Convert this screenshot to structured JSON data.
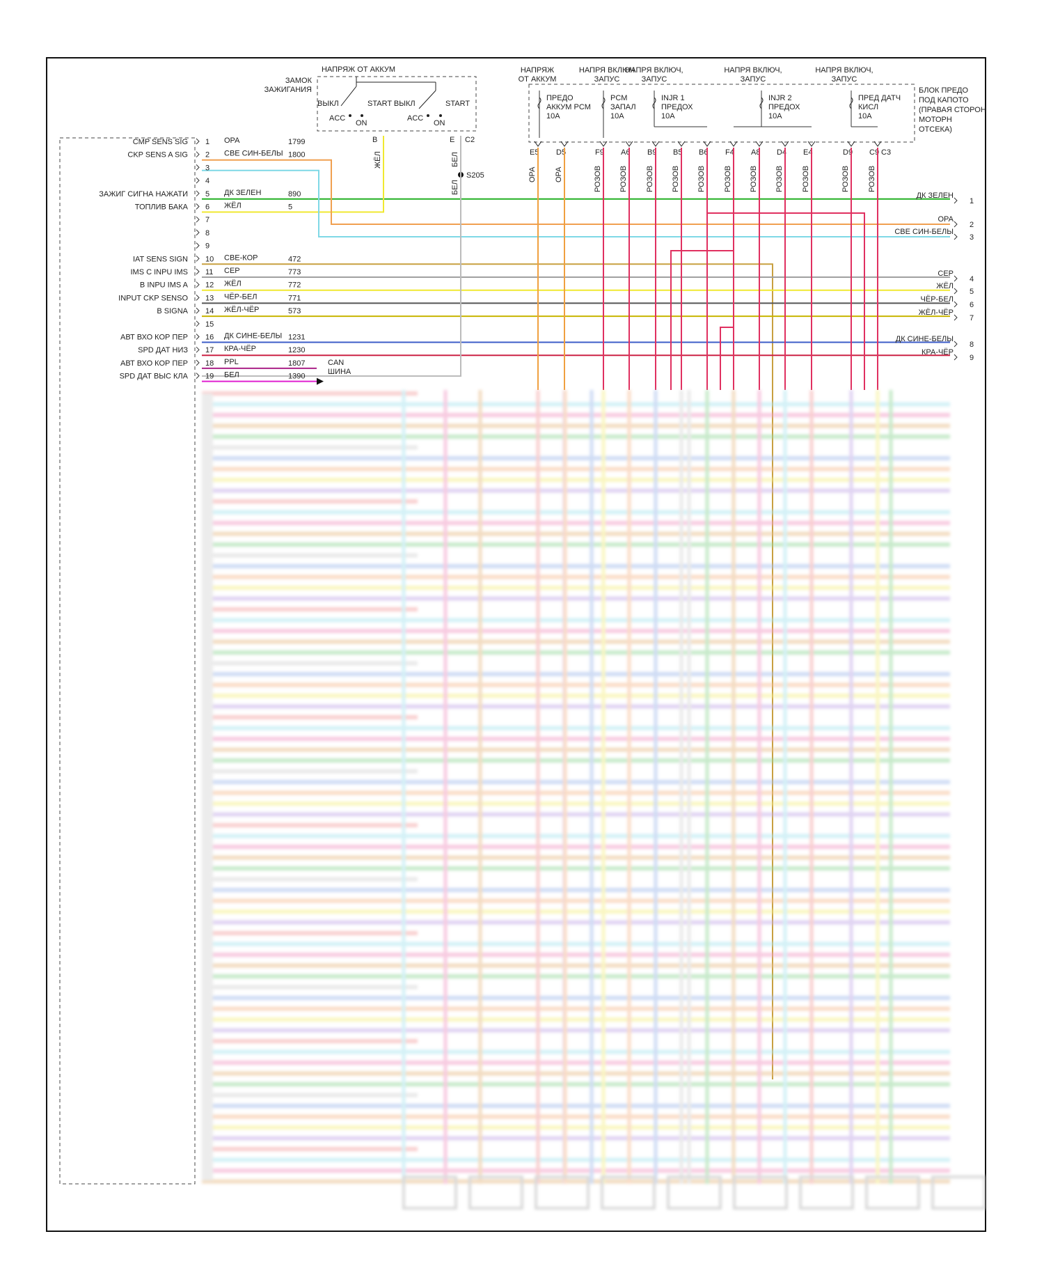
{
  "colors": {
    "orange": "#f0a050",
    "lightblue": "#7fd8e6",
    "green": "#22b022",
    "yellow": "#f0e830",
    "brown": "#c8a040",
    "gray": "#a0a0a0",
    "blackwhite": "#555555",
    "blue": "#3c5cc8",
    "red": "#cc2244",
    "purple": "#aa2288",
    "magenta": "#e020d0",
    "pink": "#e03060",
    "frame": "#111111"
  },
  "ignition": {
    "battery_label": "НАПРЯЖ ОТ АККУМ",
    "switch_label_1": "ЗАМОК",
    "switch_label_2": "ЗАЖИГАНИЯ",
    "off": "ВЫКЛ",
    "start_off": "START ВЫКЛ",
    "start": "START",
    "acc1": "ACC",
    "on1": "ON",
    "acc2": "ACC",
    "on2": "ON",
    "pin_b": "B",
    "pin_e": "E",
    "conn_c2": "C2",
    "wire_b": "ЖЁЛ",
    "wire_e": "БЕЛ",
    "wire_e2": "БЕЛ",
    "splice": "S205",
    "can_1": "CAN",
    "can_2": "ШИНА"
  },
  "fuse_box": {
    "label_lines": [
      "БЛОК ПРЕДО",
      "ПОД КАПОТО",
      "(ПРАВАЯ СТОРОН",
      "МОТОРН",
      "ОТСЕКА)"
    ],
    "supply_headers": [
      {
        "l1": "НАПРЯЖ",
        "l2": "ОТ АККУМ"
      },
      {
        "l1": "НАПРЯ ВКЛЮЧ",
        "l2": "ЗАПУС"
      },
      {
        "l1": "НАПРЯ ВКЛЮЧ,",
        "l2": "ЗАПУС"
      },
      {
        "l1": "НАПРЯ ВКЛЮЧ,",
        "l2": "ЗАПУС"
      },
      {
        "l1": "НАПРЯ ВКЛЮЧ,",
        "l2": "ЗАПУС"
      }
    ],
    "fuses": [
      {
        "l1": "ПРЕДО",
        "l2": "АККУМ PCM",
        "l3": "10A"
      },
      {
        "l1": "PCM",
        "l2": "ЗАПАЛ",
        "l3": "10A"
      },
      {
        "l1": "INJR 1",
        "l2": "ПРЕДОХ",
        "l3": "10A"
      },
      {
        "l1": "INJR 2",
        "l2": "ПРЕДОХ",
        "l3": "10A"
      },
      {
        "l1": "ПРЕД ДАТЧ",
        "l2": "КИСЛ",
        "l3": "10A"
      }
    ],
    "pins": [
      "E5",
      "D5",
      "F9",
      "A6",
      "B9",
      "B5",
      "B6",
      "F4",
      "A8",
      "D4",
      "E4",
      "D9",
      "C9"
    ],
    "conn_c3": "C3",
    "pin_wires": [
      "ОРА",
      "ОРА",
      "РОЗОВ",
      "РОЗОВ",
      "РОЗОВ",
      "РОЗОВ",
      "РОЗОВ",
      "РОЗОВ",
      "РОЗОВ",
      "РОЗОВ",
      "РОЗОВ",
      "РОЗОВ",
      "РОЗОВ"
    ]
  },
  "pcm_rows": [
    {
      "num": "1",
      "signal": "CMP SENS SIG",
      "wire": "ОРА",
      "circuit": "1799"
    },
    {
      "num": "2",
      "signal": "CKP SENS A SIG",
      "wire": "СВЕ СИН-БЕЛЫ",
      "circuit": "1800"
    },
    {
      "num": "3",
      "signal": "",
      "wire": "",
      "circuit": ""
    },
    {
      "num": "4",
      "signal": "",
      "wire": "",
      "circuit": ""
    },
    {
      "num": "5",
      "signal": "ЗАЖИГ СИГНА НАЖАТИ",
      "wire": "ДК ЗЕЛЕН",
      "circuit": "890"
    },
    {
      "num": "6",
      "signal": "ТОПЛИВ БАКА",
      "wire": "ЖЁЛ",
      "circuit": "5"
    },
    {
      "num": "7",
      "signal": "",
      "wire": "",
      "circuit": ""
    },
    {
      "num": "8",
      "signal": "",
      "wire": "",
      "circuit": ""
    },
    {
      "num": "9",
      "signal": "",
      "wire": "",
      "circuit": ""
    },
    {
      "num": "10",
      "signal": "IAT SENS SIGN",
      "wire": "СВЕ-КОР",
      "circuit": "472"
    },
    {
      "num": "11",
      "signal": "IMS C INPU IMS",
      "wire": "СЕР",
      "circuit": "773"
    },
    {
      "num": "12",
      "signal": "B INPU IMS A",
      "wire": "ЖЁЛ",
      "circuit": "772"
    },
    {
      "num": "13",
      "signal": "INPUT CKP SENSO",
      "wire": "ЧЁР-БЕЛ",
      "circuit": "771"
    },
    {
      "num": "14",
      "signal": "B SIGNA",
      "wire": "ЖЁЛ-ЧЁР",
      "circuit": "573"
    },
    {
      "num": "15",
      "signal": "",
      "wire": "",
      "circuit": ""
    },
    {
      "num": "16",
      "signal": "АВТ ВХО КОР ПЕР",
      "wire": "ДК СИНЕ-БЕЛЫ",
      "circuit": "1231"
    },
    {
      "num": "17",
      "signal": "SPD ДАТ НИЗ",
      "wire": "КРА-ЧЁР",
      "circuit": "1230"
    },
    {
      "num": "18",
      "signal": "АВТ ВХО КОР ПЕР",
      "wire": "PPL",
      "circuit": "1807"
    },
    {
      "num": "19",
      "signal": "SPD ДАТ ВЫС КЛА",
      "wire": "БЕЛ",
      "circuit": "1390"
    }
  ],
  "right_outputs": [
    {
      "wire": "ДК ЗЕЛЕН",
      "pin": "1"
    },
    {
      "wire": "ОРА",
      "pin": "2"
    },
    {
      "wire": "СВЕ СИН-БЕЛЫ",
      "pin": "3"
    },
    {
      "wire": "СЕР",
      "pin": "4"
    },
    {
      "wire": "ЖЁЛ",
      "pin": "5"
    },
    {
      "wire": "ЧЁР-БЕЛ",
      "pin": "6"
    },
    {
      "wire": "ЖЁЛ-ЧЁР",
      "pin": "7"
    },
    {
      "wire": "ДК СИНЕ-БЕЛЫ",
      "pin": "8"
    },
    {
      "wire": "КРА-ЧЁР",
      "pin": "9"
    }
  ]
}
